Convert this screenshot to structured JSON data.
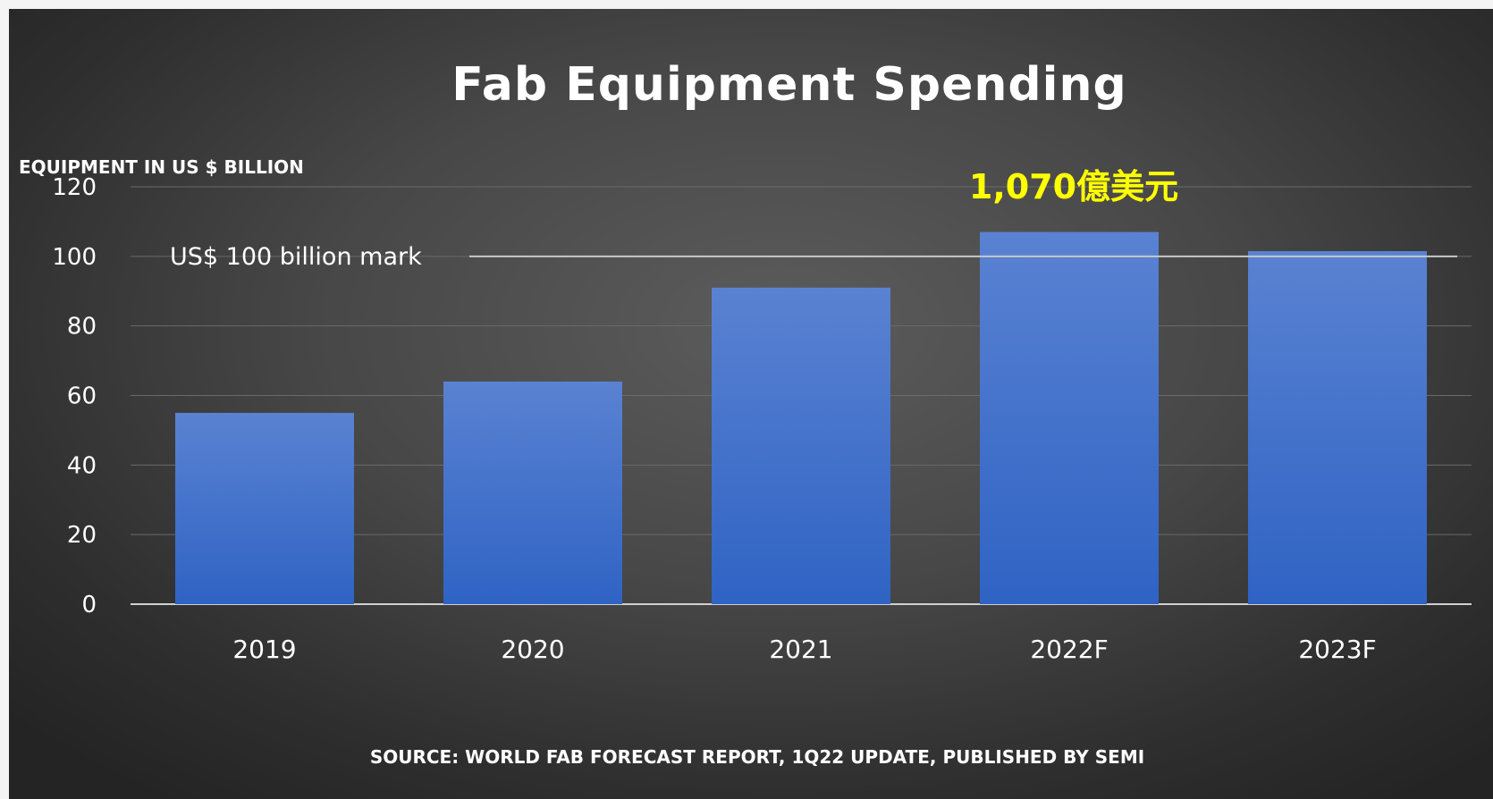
{
  "chart_data": {
    "type": "bar",
    "title": "Fab Equipment Spending",
    "ylabel": "EQUIPMENT IN US $ BILLION",
    "xlabel": "",
    "categories": [
      "2019",
      "2020",
      "2021",
      "2022F",
      "2023F"
    ],
    "values": [
      55,
      64,
      91,
      107,
      101.5
    ],
    "ylim": [
      0,
      120
    ],
    "yticks": [
      "0",
      "20",
      "40",
      "60",
      "80",
      "100",
      "120"
    ],
    "grid": true,
    "reference_line": {
      "value": 100,
      "label": "US$ 100 billion mark"
    },
    "annotations": [
      {
        "category": "2022F",
        "text": "1,070億美元"
      }
    ],
    "source": "SOURCE: WORLD FAB FORECAST REPORT, 1Q22 UPDATE, PUBLISHED BY SEMI"
  },
  "colors": {
    "bar_top": "#5a82d2",
    "bar_bottom": "#2f63c4",
    "annotation": "#ffff00",
    "text": "#ffffff",
    "grid": "#6a6a6a",
    "reference_line": "#c8c8c8"
  }
}
